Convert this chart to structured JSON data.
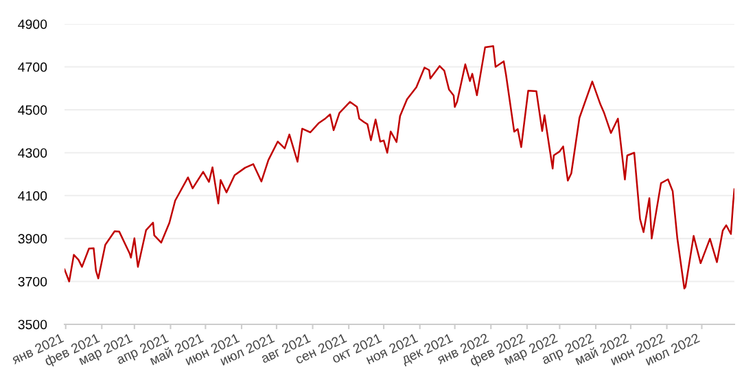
{
  "chart_data": {
    "type": "line",
    "x": [
      "2020-12-31",
      "2021-01-04",
      "2021-01-08",
      "2021-01-12",
      "2021-01-15",
      "2021-01-21",
      "2021-01-25",
      "2021-01-27",
      "2021-01-29",
      "2021-02-04",
      "2021-02-12",
      "2021-02-16",
      "2021-02-25",
      "2021-02-26",
      "2021-03-01",
      "2021-03-04",
      "2021-03-11",
      "2021-03-17",
      "2021-03-18",
      "2021-03-24",
      "2021-03-31",
      "2021-04-05",
      "2021-04-16",
      "2021-04-20",
      "2021-04-29",
      "2021-05-04",
      "2021-05-07",
      "2021-05-12",
      "2021-05-14",
      "2021-05-19",
      "2021-05-26",
      "2021-06-04",
      "2021-06-11",
      "2021-06-18",
      "2021-06-24",
      "2021-07-02",
      "2021-07-08",
      "2021-07-12",
      "2021-07-19",
      "2021-07-23",
      "2021-07-30",
      "2021-08-06",
      "2021-08-12",
      "2021-08-16",
      "2021-08-19",
      "2021-08-24",
      "2021-09-02",
      "2021-09-08",
      "2021-09-10",
      "2021-09-14",
      "2021-09-17",
      "2021-09-20",
      "2021-09-24",
      "2021-09-28",
      "2021-10-01",
      "2021-10-04",
      "2021-10-07",
      "2021-10-12",
      "2021-10-15",
      "2021-10-21",
      "2021-10-29",
      "2021-11-05",
      "2021-11-09",
      "2021-11-10",
      "2021-11-18",
      "2021-11-22",
      "2021-11-26",
      "2021-11-30",
      "2021-12-01",
      "2021-12-03",
      "2021-12-10",
      "2021-12-14",
      "2021-12-16",
      "2021-12-20",
      "2021-12-27",
      "2021-12-29",
      "2022-01-03",
      "2022-01-05",
      "2022-01-12",
      "2022-01-14",
      "2022-01-21",
      "2022-01-24",
      "2022-01-27",
      "2022-02-02",
      "2022-02-09",
      "2022-02-14",
      "2022-02-16",
      "2022-02-23",
      "2022-02-24",
      "2022-03-01",
      "2022-03-04",
      "2022-03-08",
      "2022-03-11",
      "2022-03-18",
      "2022-03-29",
      "2022-04-05",
      "2022-04-08",
      "2022-04-14",
      "2022-04-20",
      "2022-04-26",
      "2022-04-28",
      "2022-05-04",
      "2022-05-09",
      "2022-05-12",
      "2022-05-17",
      "2022-05-19",
      "2022-05-27",
      "2022-06-02",
      "2022-06-06",
      "2022-06-10",
      "2022-06-16",
      "2022-06-17",
      "2022-06-24",
      "2022-06-30",
      "2022-07-08",
      "2022-07-14",
      "2022-07-19",
      "2022-07-22",
      "2022-07-26",
      "2022-07-28",
      "2022-07-29"
    ],
    "series": [
      {
        "color": "#c00000",
        "values": [
          3756,
          3700,
          3824,
          3801,
          3768,
          3853,
          3855,
          3750,
          3714,
          3871,
          3934,
          3932,
          3829,
          3811,
          3901,
          3768,
          3939,
          3974,
          3915,
          3881,
          3973,
          4077,
          4185,
          4134,
          4211,
          4164,
          4232,
          4063,
          4173,
          4115,
          4195,
          4230,
          4247,
          4166,
          4266,
          4352,
          4320,
          4385,
          4258,
          4412,
          4395,
          4437,
          4460,
          4479,
          4405,
          4486,
          4537,
          4514,
          4459,
          4443,
          4433,
          4358,
          4455,
          4352,
          4357,
          4300,
          4399,
          4350,
          4471,
          4549,
          4605,
          4697,
          4685,
          4646,
          4704,
          4682,
          4595,
          4567,
          4513,
          4538,
          4712,
          4634,
          4668,
          4568,
          4791,
          4793,
          4797,
          4700,
          4726,
          4662,
          4398,
          4410,
          4326,
          4589,
          4587,
          4401,
          4475,
          4226,
          4288,
          4306,
          4329,
          4170,
          4204,
          4463,
          4632,
          4525,
          4488,
          4392,
          4459,
          4175,
          4287,
          4300,
          3991,
          3930,
          4088,
          3900,
          4158,
          4176,
          4121,
          3901,
          3667,
          3675,
          3912,
          3785,
          3899,
          3790,
          3937,
          3962,
          3921,
          4072,
          4130
        ]
      }
    ],
    "xlim": [
      "2020-12-31",
      "2022-07-29"
    ],
    "xticks": [
      {
        "value": "2021-01-01",
        "label": "янв 2021"
      },
      {
        "value": "2021-02-01",
        "label": "фев 2021"
      },
      {
        "value": "2021-03-01",
        "label": "мар 2021"
      },
      {
        "value": "2021-04-01",
        "label": "апр 2021"
      },
      {
        "value": "2021-05-01",
        "label": "май 2021"
      },
      {
        "value": "2021-06-01",
        "label": "июн 2021"
      },
      {
        "value": "2021-07-01",
        "label": "июл 2021"
      },
      {
        "value": "2021-08-01",
        "label": "авг 2021"
      },
      {
        "value": "2021-09-01",
        "label": "сен 2021"
      },
      {
        "value": "2021-10-01",
        "label": "окт 2021"
      },
      {
        "value": "2021-11-01",
        "label": "ноя 2021"
      },
      {
        "value": "2021-12-01",
        "label": "дек 2021"
      },
      {
        "value": "2022-01-01",
        "label": "янв 2022"
      },
      {
        "value": "2022-02-01",
        "label": "фев 2022"
      },
      {
        "value": "2022-03-01",
        "label": "мар 2022"
      },
      {
        "value": "2022-04-01",
        "label": "апр 2022"
      },
      {
        "value": "2022-05-01",
        "label": "май 2022"
      },
      {
        "value": "2022-06-01",
        "label": "июн 2022"
      },
      {
        "value": "2022-07-01",
        "label": "июл 2022"
      }
    ],
    "ylim": [
      3500,
      4900
    ],
    "yticks": [
      3500,
      3700,
      3900,
      4100,
      4300,
      4500,
      4700,
      4900
    ],
    "grid": "y",
    "marker": "none",
    "line_style": "solid"
  }
}
